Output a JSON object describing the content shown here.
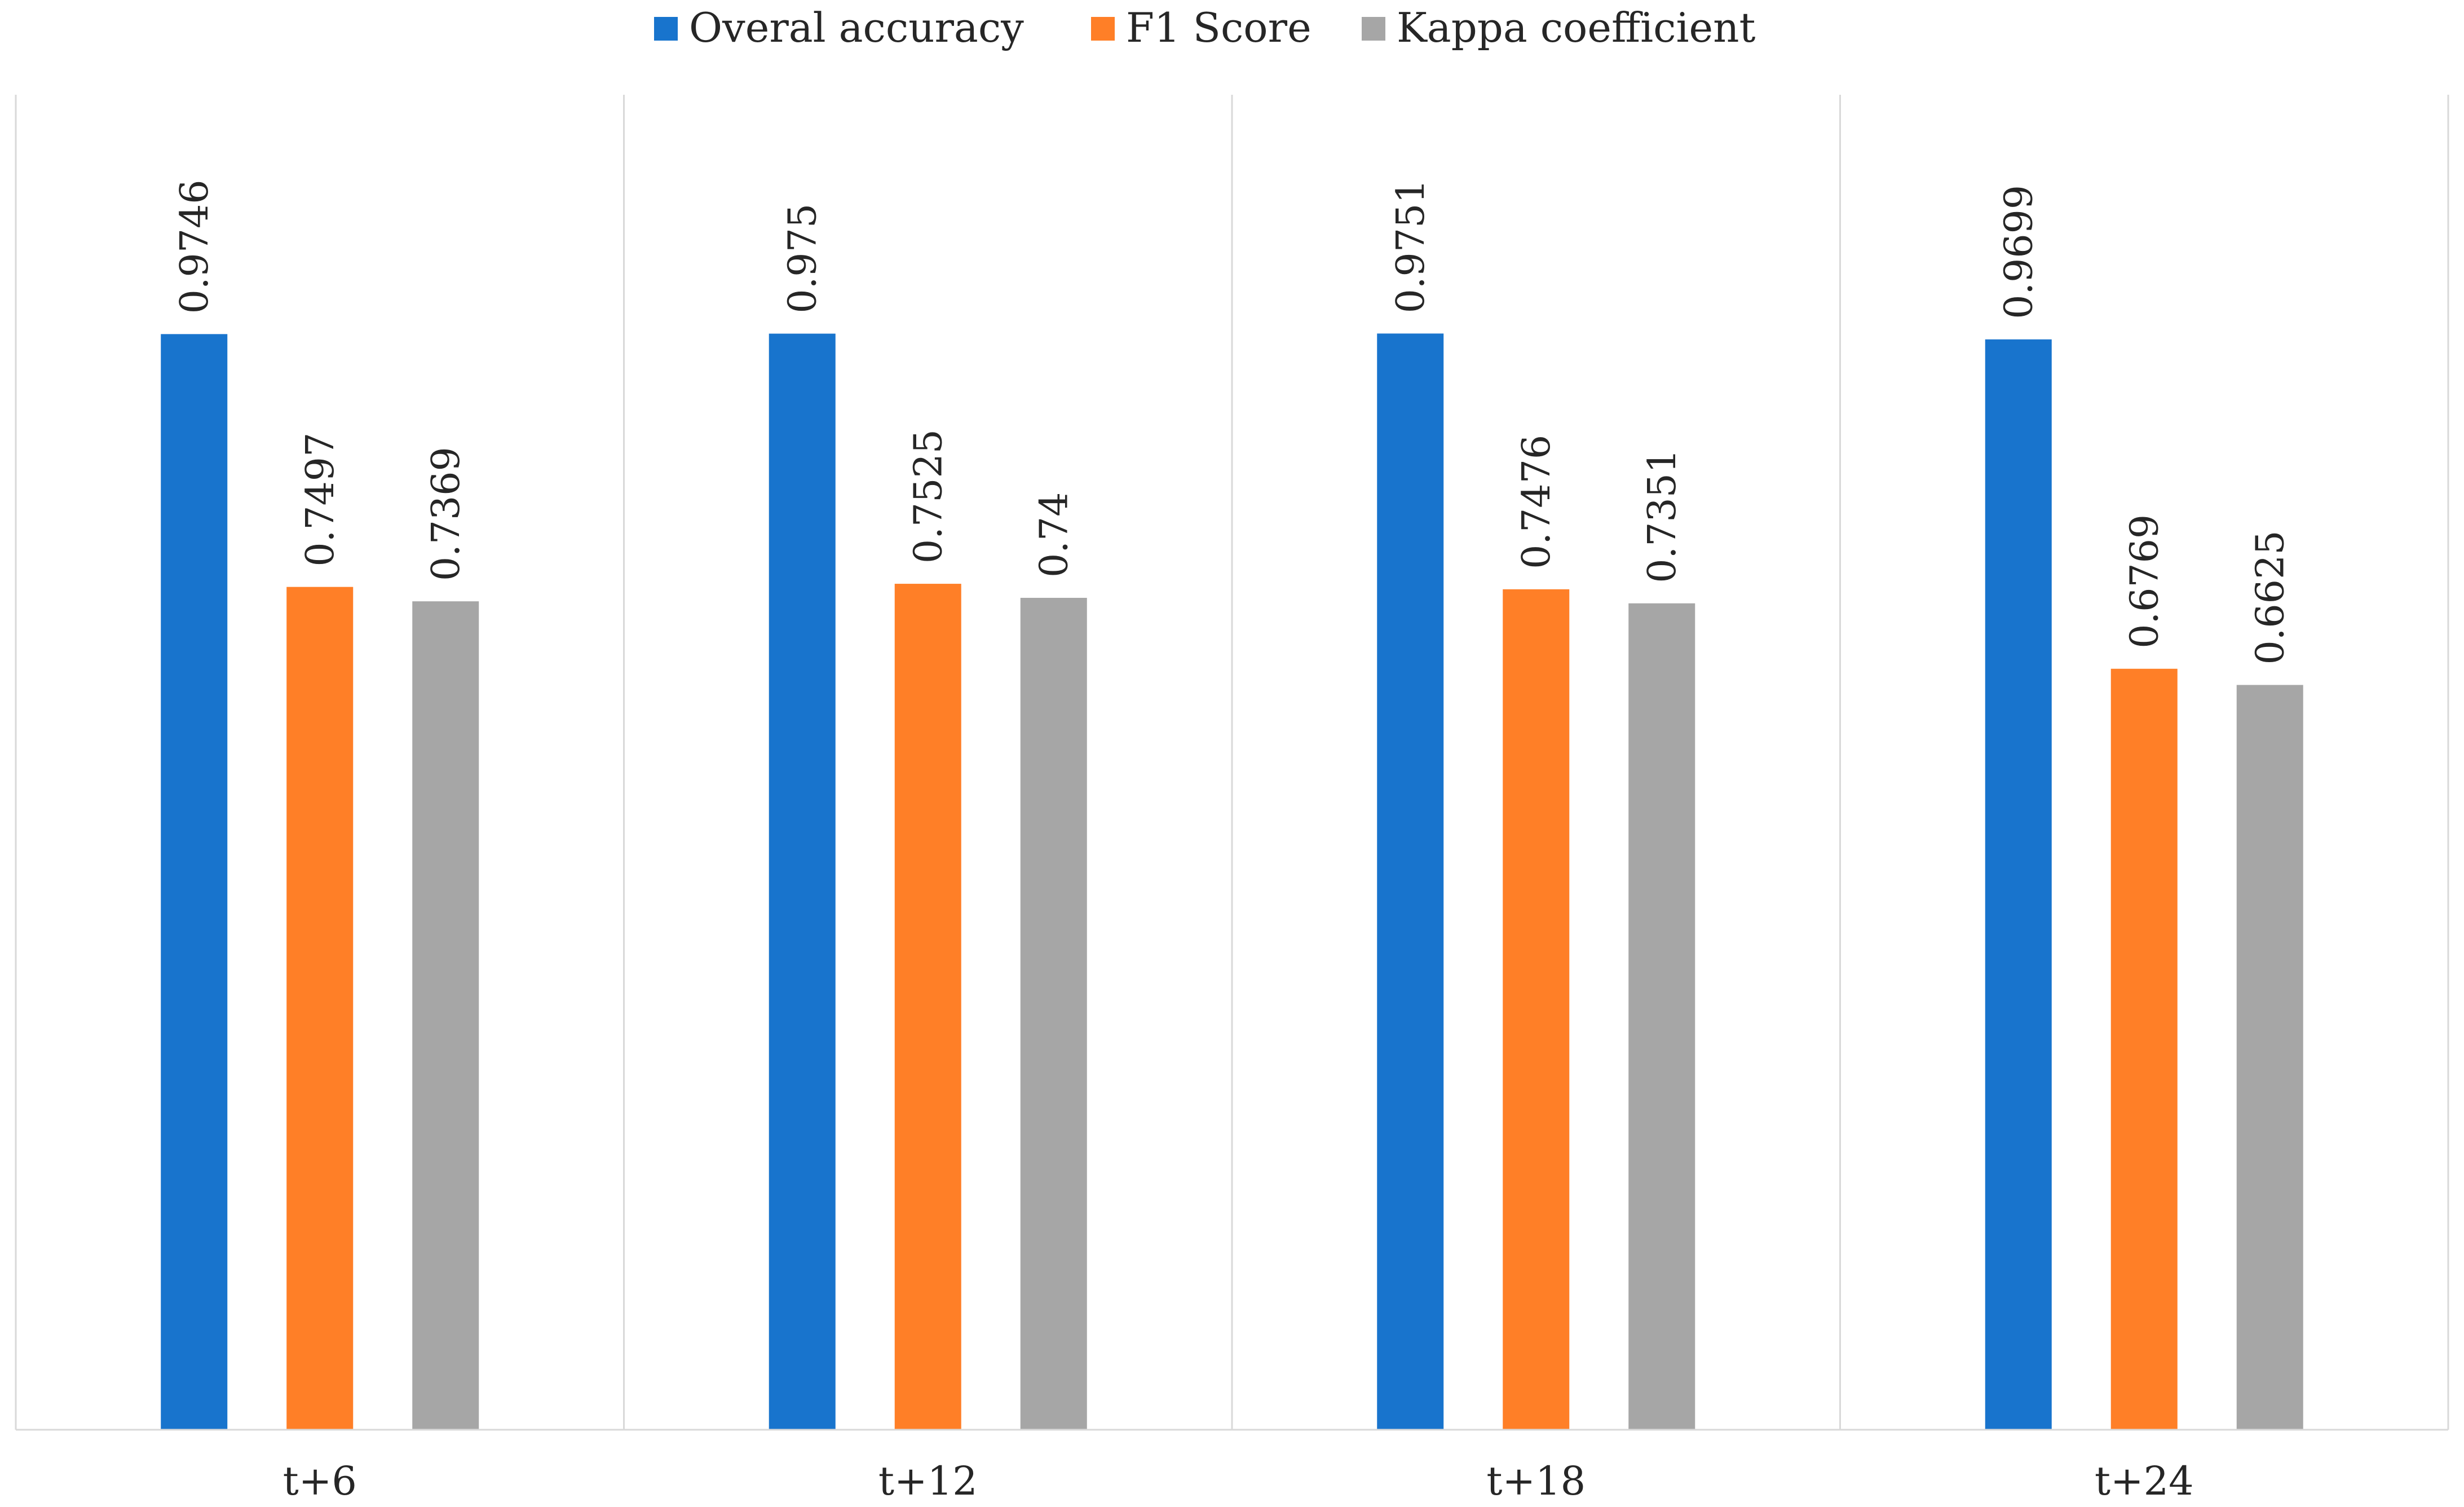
{
  "chart_data": {
    "type": "bar",
    "title": "",
    "xlabel": "",
    "ylabel": "",
    "categories": [
      "t+6",
      "t+12",
      "t+18",
      "t+24"
    ],
    "series": [
      {
        "name": "Overal  accuracy",
        "color": "#1874cd",
        "values": [
          0.9746,
          0.975,
          0.9751,
          0.9699
        ],
        "labels": [
          "0.9746",
          "0.975",
          "0.9751",
          "0.9699"
        ]
      },
      {
        "name": "F1 Score",
        "color": "#ff7f27",
        "values": [
          0.7497,
          0.7525,
          0.7476,
          0.6769
        ],
        "labels": [
          "0.7497",
          "0.7525",
          "0.7476",
          "0.6769"
        ]
      },
      {
        "name": "Kappa coefficient",
        "color": "#a6a6a6",
        "values": [
          0.7369,
          0.74,
          0.7351,
          0.6625
        ],
        "labels": [
          "0.7369",
          "0.74",
          "0.7351",
          "0.6625"
        ]
      }
    ],
    "ylim": [
      0,
      1.1875
    ],
    "grid": false,
    "legend_position": "top-center",
    "data_labels": "rotated-vertical"
  }
}
